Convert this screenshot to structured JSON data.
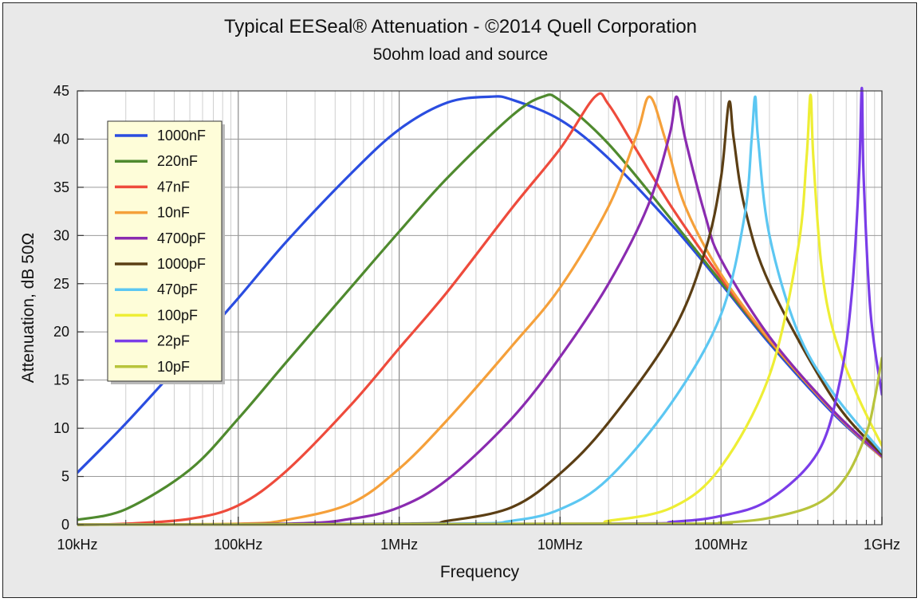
{
  "chart_data": {
    "type": "line",
    "title": "Typical EESeal® Attenuation  -  ©2014 Quell Corporation",
    "subtitle": "50ohm load and source",
    "xlabel": "Frequency",
    "ylabel": "Attenuation, dB 50Ω",
    "xscale": "log",
    "xlim": [
      10000,
      1000000000
    ],
    "ylim": [
      0,
      45
    ],
    "x_ticks": [
      {
        "value": 10000,
        "label": "10kHz"
      },
      {
        "value": 100000,
        "label": "100kHz"
      },
      {
        "value": 1000000,
        "label": "1MHz"
      },
      {
        "value": 10000000,
        "label": "10MHz"
      },
      {
        "value": 100000000,
        "label": "100MHz"
      },
      {
        "value": 1000000000,
        "label": "1GHz"
      }
    ],
    "y_ticks": [
      0,
      5,
      10,
      15,
      20,
      25,
      30,
      35,
      40,
      45
    ],
    "grid": true,
    "legend_position": "top-left",
    "series": [
      {
        "name": "1000nF",
        "color": "#2a4de0",
        "peak_freq": 3700000,
        "peak_db": 44.4,
        "peak_shape": "broad",
        "points": [
          [
            10000,
            5.4
          ],
          [
            20000,
            10.5
          ],
          [
            50000,
            17.8
          ],
          [
            100000,
            23.5
          ],
          [
            200000,
            29.4
          ],
          [
            500000,
            36.4
          ],
          [
            1000000,
            41.0
          ],
          [
            2000000,
            43.8
          ],
          [
            3700000,
            44.4
          ],
          [
            5000000,
            44.1
          ],
          [
            10000000,
            42.0
          ],
          [
            20000000,
            38.0
          ],
          [
            50000000,
            31.0
          ],
          [
            100000000,
            25.0
          ],
          [
            200000000,
            18.8
          ],
          [
            500000000,
            11.5
          ],
          [
            1000000000,
            7.0
          ]
        ]
      },
      {
        "name": "220nF",
        "color": "#4f8a2e",
        "peak_freq": 7800000,
        "peak_db": 44.4,
        "peak_shape": "broad",
        "points": [
          [
            10000,
            0.5
          ],
          [
            20000,
            1.6
          ],
          [
            50000,
            5.7
          ],
          [
            100000,
            11.0
          ],
          [
            200000,
            16.9
          ],
          [
            500000,
            24.6
          ],
          [
            1000000,
            30.4
          ],
          [
            2000000,
            36.0
          ],
          [
            5000000,
            42.4
          ],
          [
            7800000,
            44.4
          ],
          [
            10000000,
            44.0
          ],
          [
            20000000,
            39.5
          ],
          [
            50000000,
            31.5
          ],
          [
            100000000,
            25.2
          ],
          [
            200000000,
            19.0
          ],
          [
            500000000,
            11.7
          ],
          [
            1000000000,
            7.0
          ]
        ]
      },
      {
        "name": "47nF",
        "color": "#ee4b3c",
        "peak_freq": 16500000,
        "peak_db": 44.4,
        "peak_shape": "medium",
        "points": [
          [
            10000,
            0.0
          ],
          [
            20000,
            0.1
          ],
          [
            50000,
            0.6
          ],
          [
            100000,
            2.0
          ],
          [
            200000,
            5.6
          ],
          [
            500000,
            12.4
          ],
          [
            1000000,
            18.3
          ],
          [
            2000000,
            24.2
          ],
          [
            5000000,
            32.8
          ],
          [
            10000000,
            39.0
          ],
          [
            16500000,
            44.4
          ],
          [
            20000000,
            43.6
          ],
          [
            30000000,
            38.8
          ],
          [
            50000000,
            32.8
          ],
          [
            100000000,
            25.6
          ],
          [
            200000000,
            19.1
          ],
          [
            500000000,
            11.7
          ],
          [
            1000000000,
            7.0
          ]
        ]
      },
      {
        "name": "10nF",
        "color": "#f5a03a",
        "peak_freq": 36000000,
        "peak_db": 44.4,
        "peak_shape": "medium",
        "points": [
          [
            10000,
            0.0
          ],
          [
            100000,
            0.1
          ],
          [
            200000,
            0.5
          ],
          [
            500000,
            2.2
          ],
          [
            1000000,
            5.8
          ],
          [
            2000000,
            10.9
          ],
          [
            5000000,
            18.5
          ],
          [
            10000000,
            24.6
          ],
          [
            20000000,
            33.0
          ],
          [
            30000000,
            40.5
          ],
          [
            36000000,
            44.4
          ],
          [
            45000000,
            40.0
          ],
          [
            60000000,
            33.0
          ],
          [
            100000000,
            26.0
          ],
          [
            200000000,
            19.2
          ],
          [
            500000000,
            11.7
          ],
          [
            1000000000,
            7.0
          ]
        ]
      },
      {
        "name": "4700pF",
        "color": "#8a2bb0",
        "peak_freq": 53000000,
        "peak_db": 44.4,
        "peak_shape": "sharp",
        "points": [
          [
            10000,
            0.0
          ],
          [
            200000,
            0.1
          ],
          [
            500000,
            0.6
          ],
          [
            1000000,
            1.8
          ],
          [
            2000000,
            4.7
          ],
          [
            5000000,
            11.0
          ],
          [
            10000000,
            17.4
          ],
          [
            20000000,
            25.0
          ],
          [
            35000000,
            33.0
          ],
          [
            48000000,
            40.5
          ],
          [
            53000000,
            44.4
          ],
          [
            60000000,
            40.0
          ],
          [
            80000000,
            32.0
          ],
          [
            100000000,
            27.5
          ],
          [
            200000000,
            19.5
          ],
          [
            500000000,
            11.8
          ],
          [
            1000000000,
            7.1
          ]
        ]
      },
      {
        "name": "1000pF",
        "color": "#5b3e14",
        "peak_freq": 112000000,
        "peak_db": 43.8,
        "peak_shape": "sharp",
        "points": [
          [
            10000,
            0.0
          ],
          [
            1000000,
            0.1
          ],
          [
            2000000,
            0.4
          ],
          [
            5000000,
            1.8
          ],
          [
            10000000,
            5.3
          ],
          [
            20000000,
            10.6
          ],
          [
            50000000,
            20.0
          ],
          [
            80000000,
            28.5
          ],
          [
            100000000,
            36.0
          ],
          [
            112000000,
            43.8
          ],
          [
            120000000,
            40.0
          ],
          [
            140000000,
            33.0
          ],
          [
            200000000,
            25.0
          ],
          [
            500000000,
            13.0
          ],
          [
            1000000000,
            7.3
          ]
        ]
      },
      {
        "name": "470pF",
        "color": "#5cc7f2",
        "peak_freq": 163000000,
        "peak_db": 44.4,
        "peak_shape": "sharp",
        "points": [
          [
            10000,
            0.0
          ],
          [
            2000000,
            0.1
          ],
          [
            5000000,
            0.4
          ],
          [
            10000000,
            1.6
          ],
          [
            20000000,
            4.8
          ],
          [
            50000000,
            12.8
          ],
          [
            100000000,
            21.8
          ],
          [
            140000000,
            32.0
          ],
          [
            155000000,
            40.0
          ],
          [
            163000000,
            44.4
          ],
          [
            170000000,
            40.0
          ],
          [
            200000000,
            30.0
          ],
          [
            300000000,
            20.0
          ],
          [
            500000000,
            13.6
          ],
          [
            1000000000,
            7.5
          ]
        ]
      },
      {
        "name": "100pF",
        "color": "#eeee35",
        "peak_freq": 360000000,
        "peak_db": 44.6,
        "peak_shape": "sharp",
        "points": [
          [
            10000,
            0.0
          ],
          [
            10000000,
            0.1
          ],
          [
            20000000,
            0.4
          ],
          [
            50000000,
            1.8
          ],
          [
            100000000,
            6.0
          ],
          [
            200000000,
            15.5
          ],
          [
            300000000,
            28.5
          ],
          [
            340000000,
            38.0
          ],
          [
            360000000,
            44.6
          ],
          [
            375000000,
            38.0
          ],
          [
            420000000,
            27.0
          ],
          [
            500000000,
            20.0
          ],
          [
            700000000,
            13.5
          ],
          [
            1000000000,
            8.2
          ]
        ]
      },
      {
        "name": "22pF",
        "color": "#7a3de8",
        "peak_freq": 750000000,
        "peak_db": 45.3,
        "peak_shape": "very sharp",
        "points": [
          [
            10000,
            0.0
          ],
          [
            20000000,
            0.1
          ],
          [
            50000000,
            0.3
          ],
          [
            100000000,
            0.9
          ],
          [
            200000000,
            2.6
          ],
          [
            400000000,
            7.5
          ],
          [
            550000000,
            15.0
          ],
          [
            650000000,
            24.0
          ],
          [
            720000000,
            36.0
          ],
          [
            750000000,
            45.3
          ],
          [
            770000000,
            36.0
          ],
          [
            850000000,
            22.0
          ],
          [
            1000000000,
            13.5
          ]
        ]
      },
      {
        "name": "10pF",
        "color": "#b8c43c",
        "peak_freq": 1000000000,
        "peak_db": 17.3,
        "peak_shape": "rising at edge",
        "points": [
          [
            10000,
            0.0
          ],
          [
            50000000,
            0.1
          ],
          [
            100000000,
            0.2
          ],
          [
            200000000,
            0.7
          ],
          [
            400000000,
            2.2
          ],
          [
            600000000,
            5.0
          ],
          [
            800000000,
            9.5
          ],
          [
            900000000,
            13.0
          ],
          [
            1000000000,
            17.3
          ]
        ]
      }
    ]
  }
}
